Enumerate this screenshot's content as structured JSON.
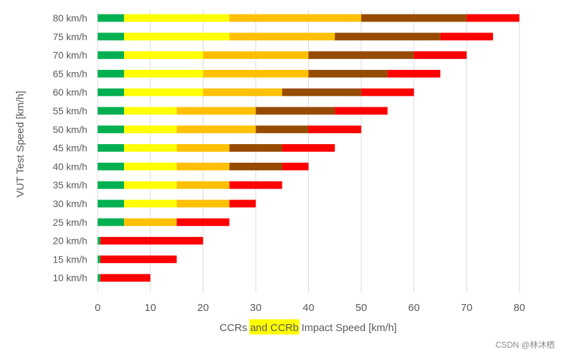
{
  "chart_data": {
    "type": "bar",
    "orientation": "horizontal",
    "stacked": true,
    "title": "",
    "xlabel": "CCRs and CCRb Impact Speed [km/h]",
    "xlabel_parts": {
      "before": "CCRs ",
      "highlight": "and CCRb",
      "after": " Impact Speed [km/h]"
    },
    "ylabel": "VUT Test Speed [km/h]",
    "xlim": [
      0,
      80
    ],
    "xticks": [
      "0",
      "10",
      "20",
      "30",
      "40",
      "50",
      "60",
      "70",
      "80"
    ],
    "xtick_values": [
      0,
      10,
      20,
      30,
      40,
      50,
      60,
      70,
      80
    ],
    "grid": "vertical",
    "legend": "none",
    "categories": [
      "80 km/h",
      "75 km/h",
      "70 km/h",
      "65 km/h",
      "60 km/h",
      "55 km/h",
      "50 km/h",
      "45 km/h",
      "40 km/h",
      "35 km/h",
      "30 km/h",
      "25 km/h",
      "20 km/h",
      "15 km/h",
      "10 km/h"
    ],
    "series": [
      {
        "name": "green",
        "color": "#00b050",
        "values": [
          5,
          5,
          5,
          5,
          5,
          5,
          5,
          5,
          5,
          5,
          5,
          5,
          0.5,
          0.5,
          0.5
        ]
      },
      {
        "name": "yellow",
        "color": "#ffff00",
        "values": [
          20,
          20,
          15,
          15,
          15,
          10,
          10,
          10,
          10,
          10,
          10,
          0,
          0,
          0,
          0
        ]
      },
      {
        "name": "orange",
        "color": "#ffc000",
        "values": [
          25,
          20,
          20,
          20,
          15,
          15,
          15,
          10,
          10,
          10,
          10,
          10,
          0,
          0,
          0
        ]
      },
      {
        "name": "brown",
        "color": "#964b00",
        "values": [
          20,
          20,
          20,
          15,
          15,
          15,
          10,
          10,
          10,
          0,
          0,
          0,
          0,
          0,
          0
        ]
      },
      {
        "name": "red",
        "color": "#ff0000",
        "values": [
          10,
          10,
          10,
          10,
          10,
          10,
          10,
          10,
          5,
          10,
          5,
          10,
          19.5,
          14.5,
          9.5
        ]
      }
    ]
  },
  "colors": {
    "gridline": "#d9d9d9",
    "text": "#595959",
    "highlight": "#ffff00"
  },
  "watermark": "CSDN @林沐栖"
}
